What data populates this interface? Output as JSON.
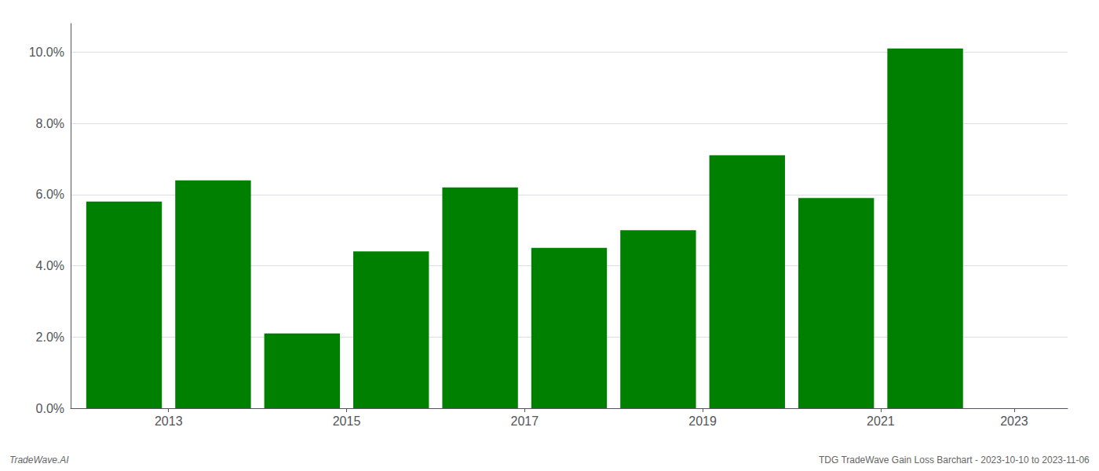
{
  "chart_data": {
    "type": "bar",
    "x": [
      2013,
      2014,
      2015,
      2016,
      2017,
      2018,
      2019,
      2020,
      2021,
      2022
    ],
    "values": [
      0.058,
      0.064,
      0.021,
      0.044,
      0.062,
      0.045,
      0.05,
      0.071,
      0.059,
      0.101
    ],
    "color": "#008000",
    "xlim": [
      2012.4,
      2023.6
    ],
    "xticks": [
      {
        "value": 2013.5,
        "label": "2013"
      },
      {
        "value": 2015.5,
        "label": "2015"
      },
      {
        "value": 2017.5,
        "label": "2017"
      },
      {
        "value": 2019.5,
        "label": "2019"
      },
      {
        "value": 2021.5,
        "label": "2021"
      },
      {
        "value": 2023.0,
        "label": "2023"
      }
    ],
    "ylim": [
      0,
      0.108
    ],
    "yticks": [
      {
        "value": 0.0,
        "label": "0.0%"
      },
      {
        "value": 0.02,
        "label": "2.0%"
      },
      {
        "value": 0.04,
        "label": "4.0%"
      },
      {
        "value": 0.06,
        "label": "6.0%"
      },
      {
        "value": 0.08,
        "label": "8.0%"
      },
      {
        "value": 0.1,
        "label": "10.0%"
      }
    ],
    "grid": true,
    "annotations": [
      "TradeWave.AI",
      "TDG TradeWave Gain Loss Barchart - 2023-10-10 to 2023-11-06"
    ]
  }
}
